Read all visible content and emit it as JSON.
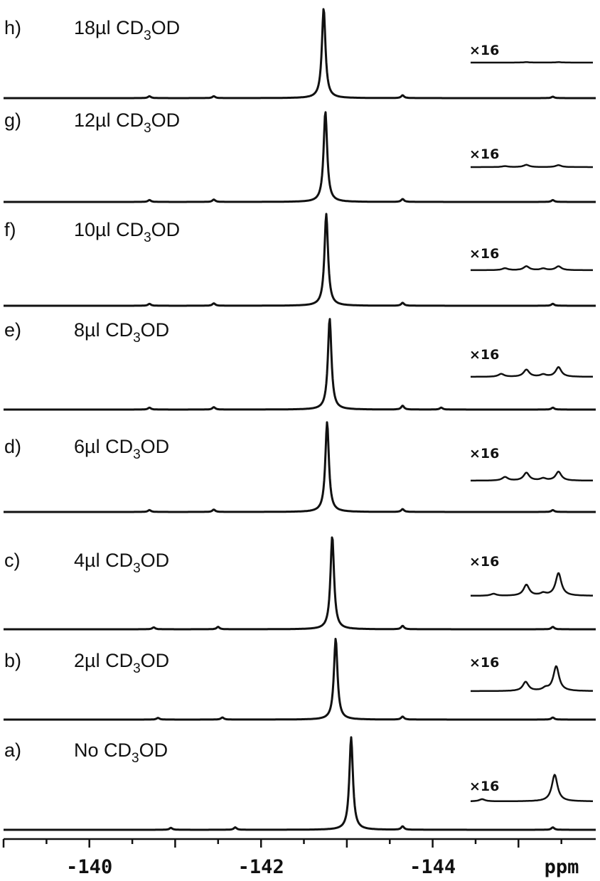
{
  "chart_data": {
    "type": "line",
    "title": "",
    "xlabel": "ppm",
    "ylabel": "",
    "xlim": [
      -139,
      -145.9
    ],
    "x_reversed": true,
    "x_ticks": [
      -140,
      -142,
      -144
    ],
    "x_tick_labels": [
      "-140",
      "-142",
      "-144"
    ],
    "grid": false,
    "inset_label": "×16",
    "inset_xlim": [
      -144.3,
      -145.9
    ],
    "series": [
      {
        "id": "a",
        "label": "a)",
        "name_main": "No CD",
        "name_sub": "3",
        "name_tail": "OD",
        "main_peak_ppm": -143.05,
        "main_peak_rel_height": 0.95,
        "minor_peaks": [
          {
            "x": -140.95,
            "h": 0.02
          },
          {
            "x": -141.7,
            "h": 0.025
          },
          {
            "x": -143.65,
            "h": 0.035
          },
          {
            "x": -145.4,
            "h": 0.025
          }
        ],
        "inset_peaks": [
          {
            "x": -144.45,
            "h": 0.04
          },
          {
            "x": -145.4,
            "h": 0.5
          }
        ]
      },
      {
        "id": "b",
        "label": "b)",
        "name_main": "2µl CD",
        "name_sub": "3",
        "name_tail": "OD",
        "main_peak_ppm": -142.87,
        "main_peak_rel_height": 0.95,
        "minor_peaks": [
          {
            "x": -140.8,
            "h": 0.02
          },
          {
            "x": -141.55,
            "h": 0.025
          },
          {
            "x": -143.65,
            "h": 0.035
          },
          {
            "x": -145.4,
            "h": 0.025
          }
        ],
        "inset_peaks": [
          {
            "x": -145.02,
            "h": 0.22
          },
          {
            "x": -145.28,
            "h": 0.06
          },
          {
            "x": -145.42,
            "h": 0.6
          }
        ]
      },
      {
        "id": "c",
        "label": "c)",
        "name_main": "4µl CD",
        "name_sub": "3",
        "name_tail": "OD",
        "main_peak_ppm": -142.83,
        "main_peak_rel_height": 0.95,
        "minor_peaks": [
          {
            "x": -140.75,
            "h": 0.02
          },
          {
            "x": -141.5,
            "h": 0.025
          },
          {
            "x": -143.65,
            "h": 0.035
          },
          {
            "x": -145.4,
            "h": 0.025
          }
        ],
        "inset_peaks": [
          {
            "x": -144.6,
            "h": 0.05
          },
          {
            "x": -145.03,
            "h": 0.28
          },
          {
            "x": -145.25,
            "h": 0.06
          },
          {
            "x": -145.45,
            "h": 0.58
          }
        ]
      },
      {
        "id": "d",
        "label": "d)",
        "name_main": "6µl CD",
        "name_sub": "3",
        "name_tail": "OD",
        "main_peak_ppm": -142.77,
        "main_peak_rel_height": 0.95,
        "minor_peaks": [
          {
            "x": -140.7,
            "h": 0.02
          },
          {
            "x": -141.45,
            "h": 0.025
          },
          {
            "x": -143.65,
            "h": 0.03
          },
          {
            "x": -145.4,
            "h": 0.02
          }
        ],
        "inset_peaks": [
          {
            "x": -144.75,
            "h": 0.1
          },
          {
            "x": -145.03,
            "h": 0.22
          },
          {
            "x": -145.25,
            "h": 0.06
          },
          {
            "x": -145.45,
            "h": 0.25
          }
        ]
      },
      {
        "id": "e",
        "label": "e)",
        "name_main": "8µl CD",
        "name_sub": "3",
        "name_tail": "OD",
        "main_peak_ppm": -142.8,
        "main_peak_rel_height": 0.95,
        "minor_peaks": [
          {
            "x": -140.7,
            "h": 0.02
          },
          {
            "x": -141.45,
            "h": 0.025
          },
          {
            "x": -143.65,
            "h": 0.04
          },
          {
            "x": -144.1,
            "h": 0.02
          },
          {
            "x": -145.4,
            "h": 0.02
          }
        ],
        "inset_peaks": [
          {
            "x": -144.7,
            "h": 0.08
          },
          {
            "x": -145.03,
            "h": 0.2
          },
          {
            "x": -145.25,
            "h": 0.06
          },
          {
            "x": -145.45,
            "h": 0.27
          }
        ]
      },
      {
        "id": "f",
        "label": "f)",
        "name_main": "10µl CD",
        "name_sub": "3",
        "name_tail": "OD",
        "main_peak_ppm": -142.76,
        "main_peak_rel_height": 0.95,
        "minor_peaks": [
          {
            "x": -140.7,
            "h": 0.02
          },
          {
            "x": -141.45,
            "h": 0.025
          },
          {
            "x": -143.65,
            "h": 0.03
          },
          {
            "x": -145.4,
            "h": 0.02
          }
        ],
        "inset_peaks": [
          {
            "x": -144.75,
            "h": 0.06
          },
          {
            "x": -145.03,
            "h": 0.12
          },
          {
            "x": -145.25,
            "h": 0.05
          },
          {
            "x": -145.45,
            "h": 0.12
          }
        ]
      },
      {
        "id": "g",
        "label": "g)",
        "name_main": "12µl CD",
        "name_sub": "3",
        "name_tail": "OD",
        "main_peak_ppm": -142.75,
        "main_peak_rel_height": 0.95,
        "minor_peaks": [
          {
            "x": -140.7,
            "h": 0.02
          },
          {
            "x": -141.45,
            "h": 0.025
          },
          {
            "x": -143.65,
            "h": 0.03
          },
          {
            "x": -145.4,
            "h": 0.02
          }
        ],
        "inset_peaks": [
          {
            "x": -144.75,
            "h": 0.03
          },
          {
            "x": -145.03,
            "h": 0.07
          },
          {
            "x": -145.45,
            "h": 0.06
          }
        ]
      },
      {
        "id": "h",
        "label": "h)",
        "name_main": "18µl CD",
        "name_sub": "3",
        "name_tail": "OD",
        "main_peak_ppm": -142.73,
        "main_peak_rel_height": 0.95,
        "minor_peaks": [
          {
            "x": -140.7,
            "h": 0.02
          },
          {
            "x": -141.45,
            "h": 0.02
          },
          {
            "x": -143.65,
            "h": 0.03
          },
          {
            "x": -145.4,
            "h": 0.015
          }
        ],
        "inset_peaks": [
          {
            "x": -145.03,
            "h": 0.015
          },
          {
            "x": -145.45,
            "h": 0.015
          }
        ]
      }
    ]
  }
}
